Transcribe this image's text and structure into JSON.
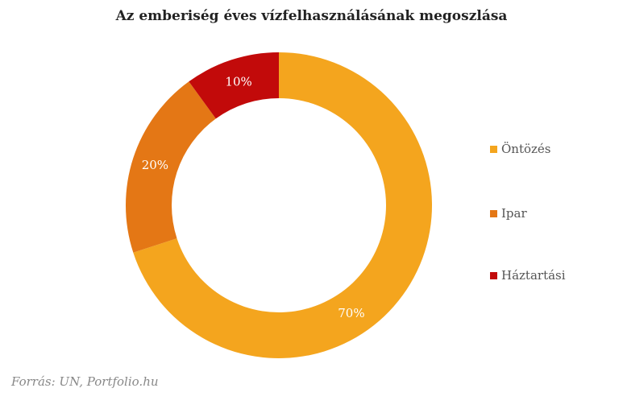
{
  "chart_data": {
    "type": "pie",
    "donut": true,
    "title": "Az emberiség éves vízfelhasználásának megoszlása",
    "categories": [
      "Öntözés",
      "Ipar",
      "Háztartási"
    ],
    "values": [
      70,
      20,
      10
    ],
    "labels": [
      "70%",
      "20%",
      "10%"
    ],
    "colors": [
      "#F4A51E",
      "#E47715",
      "#C20A0A"
    ],
    "legend_position": "right",
    "source": "Forrás: UN, Portfolio.hu"
  }
}
